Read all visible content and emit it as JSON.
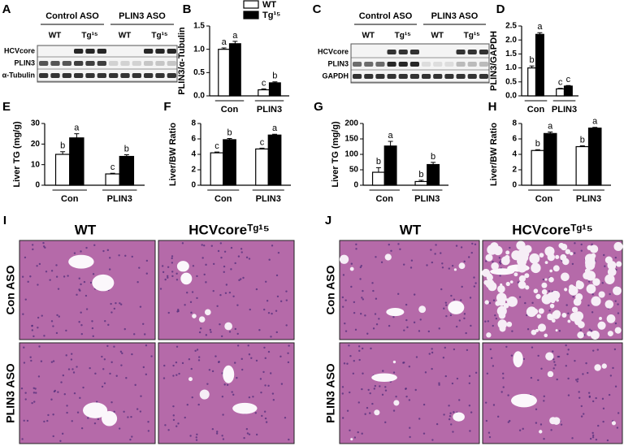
{
  "panels": [
    "A",
    "B",
    "C",
    "D",
    "E",
    "F",
    "G",
    "H",
    "I",
    "J"
  ],
  "blot_A": {
    "groups": [
      "Control ASO",
      "PLIN3 ASO"
    ],
    "lanes": [
      "WT",
      "Tg¹⁵",
      "WT",
      "Tg¹⁵"
    ],
    "rows": [
      "HCVcore",
      "PLIN3",
      "α-Tubulin"
    ]
  },
  "blot_C": {
    "groups": [
      "Control ASO",
      "PLIN3 ASO"
    ],
    "lanes": [
      "WT",
      "Tg¹⁵",
      "WT",
      "Tg¹⁵"
    ],
    "rows": [
      "HCVcore",
      "PLIN3",
      "GAPDH"
    ]
  },
  "histology_I": {
    "columns": [
      "WT",
      "HCVcoreᵀᵍ¹⁵"
    ],
    "rows": [
      "Con ASO",
      "PLIN3 ASO"
    ]
  },
  "histology_J": {
    "columns": [
      "WT",
      "HCVcoreᵀᵍ¹⁵"
    ],
    "rows": [
      "Con ASO",
      "PLIN3 ASO"
    ]
  },
  "chart_data": [
    {
      "type": "bar",
      "y_label": "PLIN3/α-Tubulin",
      "categories": [
        "Con",
        "PLIN3"
      ],
      "ylim": [
        0,
        1.5
      ],
      "yticks": [
        {
          "value": 0,
          "label": "0.0"
        },
        0.5,
        {
          "value": 1,
          "label": "1.0"
        },
        1.5
      ],
      "legend": "top-right",
      "series": [
        {
          "name": "WT",
          "color": "#ffffff",
          "values": [
            1.0,
            0.13
          ],
          "errors": [
            0.03,
            0.02
          ],
          "letters": [
            "a",
            "c"
          ]
        },
        {
          "name": "Tg¹⁵",
          "color": "#000000",
          "values": [
            1.12,
            0.28
          ],
          "errors": [
            0.05,
            0.02
          ],
          "letters": [
            "a",
            "b"
          ]
        }
      ]
    },
    {
      "type": "bar",
      "y_label": "PLIN3/GAPDH",
      "categories": [
        "Con",
        "PLIN3"
      ],
      "ylim": [
        0,
        2.5
      ],
      "yticks": [
        {
          "value": 0,
          "label": "0.0"
        },
        0.5,
        {
          "value": 1,
          "label": "1.0"
        },
        1.5,
        {
          "value": 2,
          "label": "2.0"
        },
        2.5
      ],
      "series": [
        {
          "color": "#ffffff",
          "values": [
            1.0,
            0.25
          ],
          "errors": [
            0.07,
            0.02
          ],
          "letters": [
            "b",
            "c"
          ]
        },
        {
          "color": "#000000",
          "values": [
            2.2,
            0.35
          ],
          "errors": [
            0.06,
            0.02
          ],
          "letters": [
            "a",
            "c"
          ]
        }
      ]
    },
    {
      "type": "bar",
      "y_label": "Liver TG (mg/g)",
      "categories": [
        "Con",
        "PLIN3"
      ],
      "ylim": [
        0,
        30
      ],
      "yticks": [
        0,
        10,
        20,
        30
      ],
      "series": [
        {
          "color": "#ffffff",
          "values": [
            15,
            5.5
          ],
          "errors": [
            1.3,
            0.3
          ],
          "letters": [
            "b",
            "c"
          ]
        },
        {
          "color": "#000000",
          "values": [
            23,
            14
          ],
          "errors": [
            2.0,
            0.8
          ],
          "letters": [
            "a",
            "b"
          ]
        }
      ]
    },
    {
      "type": "bar",
      "y_label": "Liver/BW Ratio",
      "categories": [
        "Con",
        "PLIN3"
      ],
      "ylim": [
        0,
        8
      ],
      "yticks": [
        0,
        2,
        4,
        6,
        8
      ],
      "series": [
        {
          "color": "#ffffff",
          "values": [
            4.2,
            4.7
          ],
          "errors": [
            0.1,
            0.1
          ],
          "letters": [
            "c",
            "c"
          ]
        },
        {
          "color": "#000000",
          "values": [
            5.9,
            6.5
          ],
          "errors": [
            0.15,
            0.1
          ],
          "letters": [
            "b",
            "a"
          ]
        }
      ]
    },
    {
      "type": "bar",
      "y_label": "Liver TG (mg/g)",
      "categories": [
        "Con",
        "PLIN3"
      ],
      "ylim": [
        0,
        200
      ],
      "yticks": [
        0,
        50,
        100,
        150,
        200
      ],
      "series": [
        {
          "color": "#ffffff",
          "values": [
            42,
            12
          ],
          "errors": [
            15,
            4
          ],
          "letters": [
            "b",
            "b"
          ]
        },
        {
          "color": "#000000",
          "values": [
            127,
            67
          ],
          "errors": [
            15,
            7
          ],
          "letters": [
            "a",
            "b"
          ]
        }
      ]
    },
    {
      "type": "bar",
      "y_label": "Liver/BW Ratio",
      "categories": [
        "Con",
        "PLIN3"
      ],
      "ylim": [
        0,
        8
      ],
      "yticks": [
        0,
        2,
        4,
        6,
        8
      ],
      "series": [
        {
          "color": "#ffffff",
          "values": [
            4.5,
            5.0
          ],
          "errors": [
            0.1,
            0.1
          ],
          "letters": [
            "b",
            "b"
          ]
        },
        {
          "color": "#000000",
          "values": [
            6.7,
            7.4
          ],
          "errors": [
            0.2,
            0.1
          ],
          "letters": [
            "a",
            "a"
          ]
        }
      ]
    }
  ]
}
